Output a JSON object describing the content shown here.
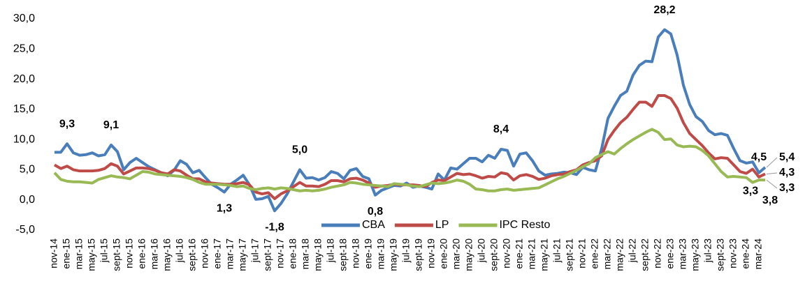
{
  "chart_data": {
    "type": "line",
    "categories": [
      "nov-14",
      null,
      "ene-15",
      null,
      "mar-15",
      null,
      "may-15",
      null,
      "jul-15",
      null,
      "sept-15",
      null,
      "nov-15",
      null,
      "ene-16",
      null,
      "mar-16",
      null,
      "may-16",
      null,
      "jul-16",
      null,
      "sept-16",
      null,
      "nov-16",
      null,
      "ene-17",
      null,
      "mar-17",
      null,
      "may-17",
      null,
      "jul-17",
      null,
      "sept-17",
      null,
      "nov-17",
      null,
      "ene-18",
      null,
      "mar-18",
      null,
      "may-18",
      null,
      "jul-18",
      null,
      "sept-18",
      null,
      "nov-18",
      null,
      "ene-19",
      null,
      "mar-19",
      null,
      "may-19",
      null,
      "jul-19",
      null,
      "sept-19",
      null,
      "nov-19",
      null,
      "ene-20",
      null,
      "mar-20",
      null,
      "may-20",
      null,
      "jul-20",
      null,
      "sept-20",
      null,
      "nov-20",
      null,
      "ene-21",
      null,
      "mar-21",
      null,
      "may-21",
      null,
      "jul-21",
      null,
      "sept-21",
      null,
      "nov-21",
      null,
      "ene-22",
      null,
      "mar-22",
      null,
      "may-22",
      null,
      "jul-22",
      null,
      "sept-22",
      null,
      "nov-22",
      null,
      "ene-23",
      null,
      "mar-23",
      null,
      "may-23",
      null,
      "jul-23",
      null,
      "sept-23",
      null,
      "nov-23",
      null,
      "ene-24",
      null,
      "mar-24",
      null
    ],
    "series": [
      {
        "name": "CBA",
        "color": "#4a7ebb",
        "values": [
          7.9,
          7.9,
          9.3,
          7.8,
          7.4,
          7.5,
          7.8,
          7.3,
          7.5,
          9.1,
          8.0,
          5.0,
          6.2,
          6.9,
          6.2,
          5.5,
          5.0,
          4.5,
          4.0,
          4.9,
          6.5,
          5.9,
          4.5,
          4.9,
          3.7,
          2.6,
          2.0,
          1.3,
          2.6,
          3.3,
          4.1,
          2.5,
          0.1,
          0.2,
          0.6,
          -1.8,
          -0.6,
          1.0,
          3.0,
          5.0,
          3.6,
          3.7,
          3.3,
          3.7,
          4.7,
          4.4,
          3.5,
          4.9,
          5.2,
          3.9,
          3.5,
          0.8,
          1.6,
          2.0,
          2.4,
          2.3,
          2.8,
          2.1,
          2.3,
          2.1,
          1.8,
          4.3,
          3.3,
          5.3,
          5.1,
          6.0,
          6.9,
          6.9,
          6.3,
          7.4,
          6.9,
          8.4,
          8.2,
          5.6,
          7.6,
          7.8,
          6.5,
          4.8,
          4.1,
          4.3,
          4.4,
          4.6,
          4.5,
          4.2,
          5.4,
          5.0,
          4.8,
          8.5,
          13.5,
          15.5,
          17.3,
          18.0,
          20.7,
          22.3,
          23.0,
          22.9,
          27.0,
          28.2,
          27.5,
          24.0,
          19.0,
          15.8,
          13.8,
          13.0,
          11.5,
          10.8,
          11.0,
          10.7,
          8.5,
          6.5,
          6.1,
          6.3,
          4.5,
          5.4
        ],
        "value_labels": [
          null,
          null,
          "9,3",
          null,
          null,
          null,
          null,
          null,
          null,
          "9,1",
          null,
          null,
          null,
          null,
          null,
          null,
          null,
          null,
          null,
          null,
          null,
          null,
          null,
          null,
          null,
          null,
          null,
          "1,3",
          null,
          null,
          null,
          null,
          null,
          null,
          null,
          "-1,8",
          null,
          null,
          null,
          "5,0",
          null,
          null,
          null,
          null,
          null,
          null,
          null,
          null,
          null,
          null,
          null,
          "0,8",
          null,
          null,
          null,
          null,
          null,
          null,
          null,
          null,
          null,
          null,
          null,
          null,
          null,
          null,
          null,
          null,
          null,
          null,
          null,
          "8,4",
          null,
          null,
          null,
          null,
          null,
          null,
          null,
          null,
          null,
          null,
          null,
          null,
          null,
          null,
          null,
          null,
          null,
          null,
          null,
          null,
          null,
          null,
          null,
          null,
          null,
          "28,2",
          null,
          null,
          null,
          null,
          null,
          null,
          null,
          null,
          null,
          null,
          null,
          null,
          null,
          null,
          "4,5",
          "5,4"
        ]
      },
      {
        "name": "LP",
        "color": "#be4b48",
        "values": [
          5.8,
          5.2,
          5.6,
          5.0,
          4.8,
          4.8,
          4.8,
          4.9,
          5.2,
          6.0,
          5.6,
          4.3,
          4.8,
          5.3,
          5.3,
          5.2,
          4.9,
          4.5,
          4.3,
          5.0,
          4.8,
          4.1,
          3.5,
          3.5,
          3.0,
          2.8,
          2.7,
          2.6,
          2.6,
          2.7,
          2.9,
          2.5,
          1.3,
          1.0,
          1.2,
          0.2,
          1.0,
          1.5,
          2.2,
          2.9,
          2.3,
          2.3,
          2.2,
          2.6,
          3.2,
          3.2,
          3.0,
          3.5,
          3.6,
          3.3,
          2.8,
          2.1,
          2.3,
          2.4,
          2.6,
          2.5,
          2.5,
          2.5,
          2.4,
          2.2,
          2.9,
          3.3,
          3.2,
          3.8,
          4.4,
          4.2,
          4.3,
          4.0,
          3.6,
          3.9,
          3.8,
          4.5,
          4.3,
          3.3,
          4.0,
          4.2,
          3.9,
          3.4,
          3.6,
          4.0,
          4.2,
          4.3,
          4.7,
          5.0,
          5.8,
          6.2,
          6.5,
          7.3,
          10.0,
          11.5,
          12.8,
          13.7,
          15.0,
          16.2,
          16.2,
          15.5,
          17.3,
          17.3,
          16.8,
          15.2,
          12.8,
          11.0,
          10.0,
          9.0,
          7.8,
          6.8,
          7.0,
          6.9,
          5.8,
          4.7,
          4.4,
          5.1,
          3.8,
          4.3
        ],
        "value_labels": [
          null,
          null,
          null,
          null,
          null,
          null,
          null,
          null,
          null,
          null,
          null,
          null,
          null,
          null,
          null,
          null,
          null,
          null,
          null,
          null,
          null,
          null,
          null,
          null,
          null,
          null,
          null,
          null,
          null,
          null,
          null,
          null,
          null,
          null,
          null,
          null,
          null,
          null,
          null,
          null,
          null,
          null,
          null,
          null,
          null,
          null,
          null,
          null,
          null,
          null,
          null,
          null,
          null,
          null,
          null,
          null,
          null,
          null,
          null,
          null,
          null,
          null,
          null,
          null,
          null,
          null,
          null,
          null,
          null,
          null,
          null,
          null,
          null,
          null,
          null,
          null,
          null,
          null,
          null,
          null,
          null,
          null,
          null,
          null,
          null,
          null,
          null,
          null,
          null,
          null,
          null,
          null,
          null,
          null,
          null,
          null,
          null,
          null,
          null,
          null,
          null,
          null,
          null,
          null,
          null,
          null,
          null,
          null,
          null,
          null,
          null,
          null,
          "3,8",
          "4,3"
        ]
      },
      {
        "name": "IPC Resto",
        "color": "#98b954",
        "values": [
          4.5,
          3.4,
          3.1,
          3.0,
          3.0,
          2.9,
          2.8,
          3.4,
          3.7,
          4.0,
          3.8,
          3.7,
          3.5,
          4.1,
          4.7,
          4.6,
          4.3,
          4.2,
          4.1,
          4.0,
          3.9,
          3.7,
          3.4,
          2.9,
          2.6,
          2.6,
          2.6,
          2.5,
          2.4,
          2.2,
          2.3,
          1.9,
          1.7,
          1.9,
          2.0,
          1.8,
          2.0,
          1.9,
          1.7,
          1.5,
          1.6,
          1.5,
          1.6,
          1.8,
          2.1,
          2.3,
          2.5,
          2.9,
          2.8,
          2.6,
          2.5,
          2.4,
          2.3,
          2.2,
          2.7,
          2.6,
          2.5,
          2.3,
          2.2,
          2.5,
          2.8,
          2.7,
          2.8,
          3.0,
          3.3,
          3.1,
          2.6,
          1.8,
          1.7,
          1.5,
          1.5,
          1.7,
          1.8,
          1.6,
          1.7,
          1.8,
          1.9,
          2.0,
          2.5,
          3.0,
          3.5,
          3.9,
          4.4,
          4.9,
          5.5,
          6.0,
          7.0,
          7.5,
          8.0,
          7.6,
          8.5,
          9.3,
          10.0,
          10.6,
          11.2,
          11.7,
          11.2,
          10.0,
          10.1,
          9.1,
          8.8,
          8.9,
          8.8,
          8.2,
          7.3,
          6.0,
          4.7,
          3.8,
          3.9,
          3.8,
          3.7,
          2.9,
          3.3,
          3.3
        ],
        "value_labels": [
          null,
          null,
          null,
          null,
          null,
          null,
          null,
          null,
          null,
          null,
          null,
          null,
          null,
          null,
          null,
          null,
          null,
          null,
          null,
          null,
          null,
          null,
          null,
          null,
          null,
          null,
          null,
          null,
          null,
          null,
          null,
          null,
          null,
          null,
          null,
          null,
          null,
          null,
          null,
          null,
          null,
          null,
          null,
          null,
          null,
          null,
          null,
          null,
          null,
          null,
          null,
          null,
          null,
          null,
          null,
          null,
          null,
          null,
          null,
          null,
          null,
          null,
          null,
          null,
          null,
          null,
          null,
          null,
          null,
          null,
          null,
          null,
          null,
          null,
          null,
          null,
          null,
          null,
          null,
          null,
          null,
          null,
          null,
          null,
          null,
          null,
          null,
          null,
          null,
          null,
          null,
          null,
          null,
          null,
          null,
          null,
          null,
          null,
          null,
          null,
          null,
          null,
          null,
          null,
          null,
          null,
          null,
          null,
          null,
          null,
          null,
          null,
          "3,3",
          "3,3"
        ]
      }
    ],
    "ylim": [
      -5,
      30
    ],
    "yticks": [
      {
        "value": -5,
        "label": "-5,0"
      },
      {
        "value": 0,
        "label": "0,0"
      },
      {
        "value": 5,
        "label": "5,0"
      },
      {
        "value": 10,
        "label": "10,0"
      },
      {
        "value": 15,
        "label": "15,0"
      },
      {
        "value": 20,
        "label": "20,0"
      },
      {
        "value": 25,
        "label": "25,0"
      },
      {
        "value": 30,
        "label": "30,0"
      }
    ],
    "grid": false,
    "legend": "bottom"
  }
}
